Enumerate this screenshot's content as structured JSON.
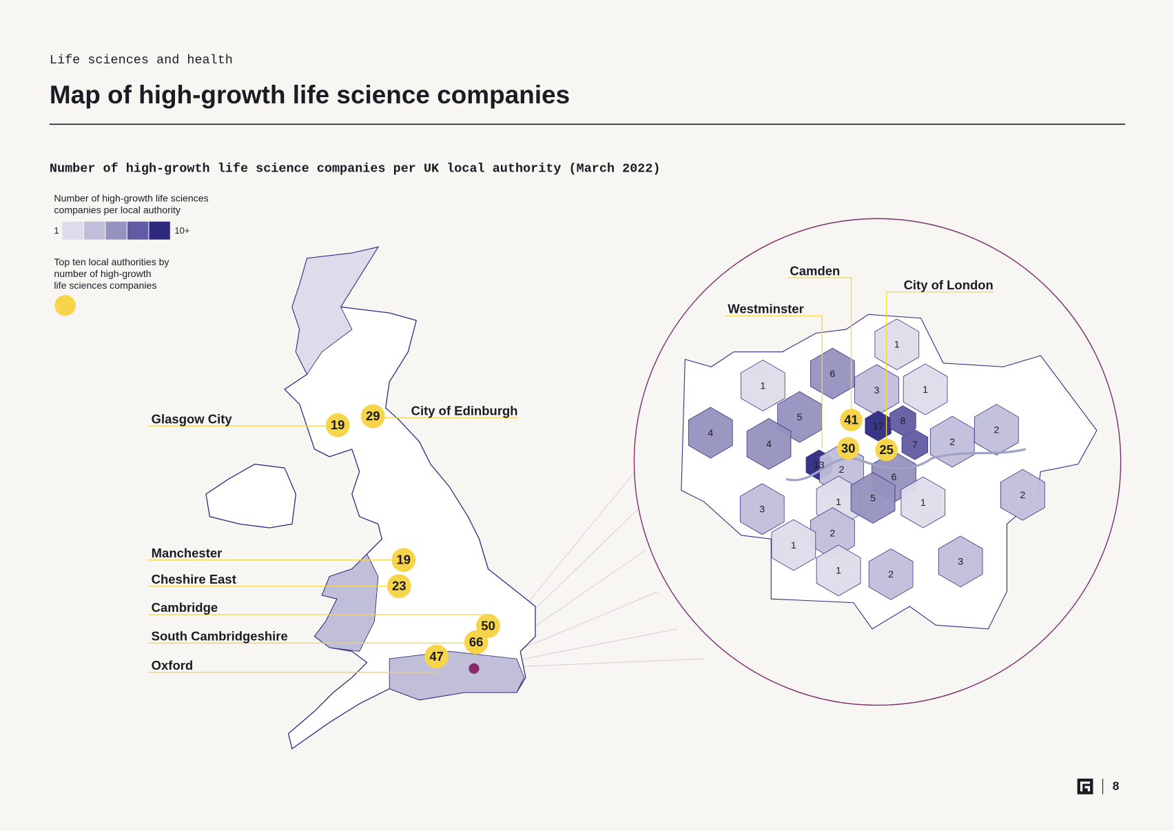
{
  "header": {
    "kicker": "Life sciences and health",
    "title": "Map of high-growth life science companies"
  },
  "subtitle": "Number of high-growth life science companies per UK local authority (March 2022)",
  "legend": {
    "title_lines": [
      "Number of high-growth life sciences",
      "companies per local authority"
    ],
    "min_label": "1",
    "max_label": "10+",
    "colors": [
      "#dedcea",
      "#c0bed9",
      "#9591c0",
      "#615ba3",
      "#2e2a7f"
    ],
    "top_ten_lines": [
      "Top ten local authorities by",
      "number of high-growth",
      "life sciences companies"
    ],
    "top_ten_color": "#f7d54a"
  },
  "uk_callouts": [
    {
      "label": "Glasgow City",
      "value": 19
    },
    {
      "label": "City of Edinburgh",
      "value": 29
    },
    {
      "label": "Manchester",
      "value": 19
    },
    {
      "label": "Cheshire East",
      "value": 23
    },
    {
      "label": "Cambridge",
      "value": 50
    },
    {
      "label": "South Cambridgeshire",
      "value": 66
    },
    {
      "label": "Oxford",
      "value": 47
    }
  ],
  "london": {
    "callouts": [
      {
        "label": "Camden",
        "value": 41
      },
      {
        "label": "Westminster",
        "value": 30
      },
      {
        "label": "City of London",
        "value": 25
      }
    ],
    "boroughs": [
      1,
      6,
      3,
      1,
      1,
      5,
      17,
      8,
      4,
      4,
      7,
      2,
      2,
      13,
      2,
      6,
      3,
      1,
      5,
      1,
      2,
      2,
      1,
      1,
      2,
      3
    ]
  },
  "footer": {
    "page": "8"
  }
}
